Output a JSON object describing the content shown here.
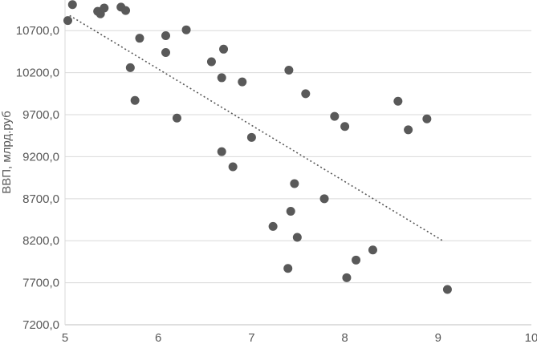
{
  "chart_data": {
    "type": "scatter",
    "title": "",
    "xlabel": "",
    "ylabel": "ВВП, млрд.руб",
    "xlim": [
      5,
      10
    ],
    "ylim": [
      7200,
      11065
    ],
    "grid": true,
    "legend": false,
    "marker_color": "#595959",
    "gridline_color": "#D9D9D9",
    "axis_line_color": "#BFBFBF",
    "tick_label_color": "#595959",
    "x_ticks": [
      {
        "value": 5,
        "label": "5"
      },
      {
        "value": 6,
        "label": "6"
      },
      {
        "value": 7,
        "label": "7"
      },
      {
        "value": 8,
        "label": "8"
      },
      {
        "value": 9,
        "label": "9"
      },
      {
        "value": 10,
        "label": "10"
      }
    ],
    "y_ticks": [
      {
        "value": 7200,
        "label": "7200,0"
      },
      {
        "value": 7700,
        "label": "7700,0"
      },
      {
        "value": 8200,
        "label": "8200,0"
      },
      {
        "value": 8700,
        "label": "8700,0"
      },
      {
        "value": 9200,
        "label": "9200,0"
      },
      {
        "value": 9700,
        "label": "9700,0"
      },
      {
        "value": 10200,
        "label": "10200,0"
      },
      {
        "value": 10700,
        "label": "10700,0"
      }
    ],
    "points": [
      [
        5.03,
        10820
      ],
      [
        5.08,
        11010
      ],
      [
        5.35,
        10930
      ],
      [
        5.38,
        10900
      ],
      [
        5.42,
        10970
      ],
      [
        5.6,
        10980
      ],
      [
        5.65,
        10940
      ],
      [
        5.7,
        10260
      ],
      [
        5.75,
        9870
      ],
      [
        5.8,
        10610
      ],
      [
        6.08,
        10640
      ],
      [
        6.08,
        10440
      ],
      [
        6.2,
        9660
      ],
      [
        6.3,
        10710
      ],
      [
        6.57,
        10330
      ],
      [
        6.68,
        10140
      ],
      [
        6.68,
        9260
      ],
      [
        6.7,
        10480
      ],
      [
        6.8,
        9080
      ],
      [
        6.9,
        10090
      ],
      [
        7.0,
        9430
      ],
      [
        7.23,
        8370
      ],
      [
        7.39,
        7870
      ],
      [
        7.4,
        10230
      ],
      [
        7.42,
        8550
      ],
      [
        7.46,
        8880
      ],
      [
        7.49,
        8240
      ],
      [
        7.58,
        9950
      ],
      [
        7.78,
        8700
      ],
      [
        7.89,
        9680
      ],
      [
        8.0,
        9560
      ],
      [
        8.02,
        7760
      ],
      [
        8.12,
        7970
      ],
      [
        8.3,
        8090
      ],
      [
        8.57,
        9860
      ],
      [
        8.68,
        9520
      ],
      [
        8.88,
        9650
      ],
      [
        9.1,
        7620
      ]
    ],
    "trendline": {
      "type": "linear",
      "style": "dotted",
      "x_start": 5.05,
      "y_start": 10880,
      "x_end": 9.05,
      "y_end": 8200
    }
  }
}
